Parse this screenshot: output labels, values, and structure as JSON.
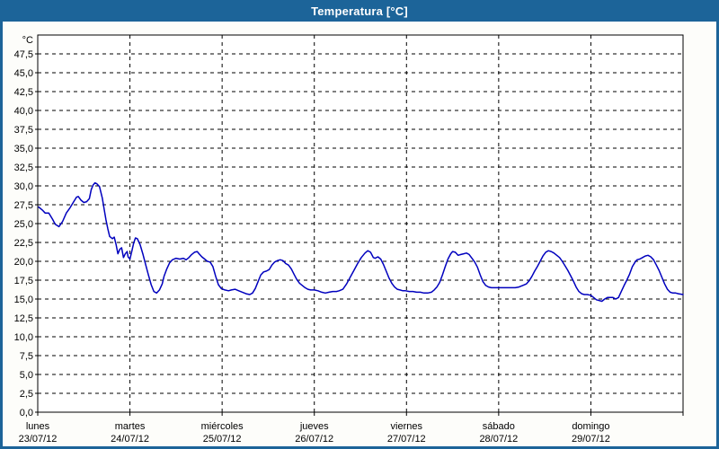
{
  "window": {
    "title": "Temperatura [°C]"
  },
  "colors": {
    "titlebar_bg": "#1C6499",
    "titlebar_text": "#FFFFFF",
    "window_border": "#1C6499",
    "panel_bg": "#FDFDFA",
    "plot_bg": "#FFFFFF",
    "axis": "#000000",
    "grid": "#000000",
    "label_text": "#000000",
    "series_line": "#0000BE"
  },
  "chart_data": {
    "type": "line",
    "title": "Temperatura [°C]",
    "legend": "none",
    "grid": {
      "horizontal": true,
      "vertical": true,
      "style": "dashed"
    },
    "y_axis": {
      "unit_label": "°C",
      "min": 0,
      "max": 50,
      "tick_step": 2.5,
      "decimal_separator": ",",
      "tick_labels": [
        "0,0",
        "2,5",
        "5,0",
        "7,5",
        "10,0",
        "12,5",
        "15,0",
        "17,5",
        "20,0",
        "22,5",
        "25,0",
        "27,5",
        "30,0",
        "32,5",
        "35,0",
        "37,5",
        "40,0",
        "42,5",
        "45,0",
        "47,5"
      ]
    },
    "x_axis": {
      "span_days": 7,
      "days": [
        {
          "name": "lunes",
          "date": "23/07/12"
        },
        {
          "name": "martes",
          "date": "24/07/12"
        },
        {
          "name": "miércoles",
          "date": "25/07/12"
        },
        {
          "name": "jueves",
          "date": "26/07/12"
        },
        {
          "name": "viernes",
          "date": "27/07/12"
        },
        {
          "name": "sábado",
          "date": "28/07/12"
        },
        {
          "name": "domingo",
          "date": "29/07/12"
        }
      ]
    },
    "series": [
      {
        "name": "Temperatura",
        "unit": "°C",
        "color": "#0000BE",
        "points_days_temp": [
          [
            0.01,
            27.2
          ],
          [
            0.05,
            26.8
          ],
          [
            0.08,
            26.4
          ],
          [
            0.12,
            26.4
          ],
          [
            0.16,
            25.6
          ],
          [
            0.19,
            24.9
          ],
          [
            0.23,
            24.6
          ],
          [
            0.27,
            25.3
          ],
          [
            0.31,
            26.4
          ],
          [
            0.35,
            27.1
          ],
          [
            0.39,
            27.9
          ],
          [
            0.42,
            28.5
          ],
          [
            0.44,
            28.6
          ],
          [
            0.47,
            28.1
          ],
          [
            0.5,
            27.8
          ],
          [
            0.53,
            27.9
          ],
          [
            0.56,
            28.3
          ],
          [
            0.58,
            29.5
          ],
          [
            0.6,
            30.1
          ],
          [
            0.62,
            30.4
          ],
          [
            0.64,
            30.3
          ],
          [
            0.67,
            29.9
          ],
          [
            0.7,
            28.4
          ],
          [
            0.72,
            26.9
          ],
          [
            0.74,
            25.5
          ],
          [
            0.76,
            24.3
          ],
          [
            0.78,
            23.3
          ],
          [
            0.81,
            23.0
          ],
          [
            0.83,
            23.2
          ],
          [
            0.85,
            22.2
          ],
          [
            0.87,
            21.0
          ],
          [
            0.89,
            21.6
          ],
          [
            0.91,
            21.8
          ],
          [
            0.93,
            20.5
          ],
          [
            0.95,
            21.0
          ],
          [
            0.97,
            21.3
          ],
          [
            0.98,
            20.6
          ],
          [
            1.0,
            20.3
          ],
          [
            1.02,
            21.3
          ],
          [
            1.04,
            22.4
          ],
          [
            1.06,
            23.1
          ],
          [
            1.08,
            23.0
          ],
          [
            1.11,
            22.2
          ],
          [
            1.14,
            21.0
          ],
          [
            1.17,
            19.6
          ],
          [
            1.2,
            18.2
          ],
          [
            1.23,
            16.9
          ],
          [
            1.26,
            16.0
          ],
          [
            1.29,
            15.8
          ],
          [
            1.32,
            16.2
          ],
          [
            1.35,
            17.0
          ],
          [
            1.37,
            18.0
          ],
          [
            1.4,
            19.0
          ],
          [
            1.43,
            19.8
          ],
          [
            1.46,
            20.2
          ],
          [
            1.5,
            20.4
          ],
          [
            1.54,
            20.3
          ],
          [
            1.58,
            20.4
          ],
          [
            1.61,
            20.2
          ],
          [
            1.64,
            20.5
          ],
          [
            1.67,
            20.9
          ],
          [
            1.7,
            21.2
          ],
          [
            1.73,
            21.3
          ],
          [
            1.75,
            21.0
          ],
          [
            1.78,
            20.6
          ],
          [
            1.81,
            20.3
          ],
          [
            1.84,
            20.0
          ],
          [
            1.87,
            19.9
          ],
          [
            1.9,
            19.3
          ],
          [
            1.93,
            18.0
          ],
          [
            1.96,
            16.9
          ],
          [
            1.99,
            16.4
          ],
          [
            2.03,
            16.2
          ],
          [
            2.07,
            16.1
          ],
          [
            2.1,
            16.2
          ],
          [
            2.14,
            16.3
          ],
          [
            2.18,
            16.1
          ],
          [
            2.22,
            15.9
          ],
          [
            2.26,
            15.7
          ],
          [
            2.3,
            15.6
          ],
          [
            2.33,
            15.8
          ],
          [
            2.36,
            16.4
          ],
          [
            2.39,
            17.3
          ],
          [
            2.42,
            18.2
          ],
          [
            2.45,
            18.6
          ],
          [
            2.48,
            18.7
          ],
          [
            2.51,
            18.9
          ],
          [
            2.54,
            19.5
          ],
          [
            2.57,
            19.9
          ],
          [
            2.6,
            20.1
          ],
          [
            2.63,
            20.2
          ],
          [
            2.66,
            20.1
          ],
          [
            2.69,
            19.7
          ],
          [
            2.72,
            19.5
          ],
          [
            2.75,
            19.0
          ],
          [
            2.78,
            18.3
          ],
          [
            2.81,
            17.6
          ],
          [
            2.84,
            17.1
          ],
          [
            2.87,
            16.8
          ],
          [
            2.9,
            16.5
          ],
          [
            2.93,
            16.3
          ],
          [
            2.96,
            16.2
          ],
          [
            3.0,
            16.2
          ],
          [
            3.04,
            16.1
          ],
          [
            3.08,
            15.9
          ],
          [
            3.12,
            15.8
          ],
          [
            3.16,
            15.9
          ],
          [
            3.2,
            16.0
          ],
          [
            3.24,
            16.0
          ],
          [
            3.27,
            16.1
          ],
          [
            3.31,
            16.3
          ],
          [
            3.35,
            17.0
          ],
          [
            3.39,
            17.9
          ],
          [
            3.43,
            18.8
          ],
          [
            3.47,
            19.7
          ],
          [
            3.51,
            20.5
          ],
          [
            3.55,
            21.1
          ],
          [
            3.58,
            21.4
          ],
          [
            3.61,
            21.2
          ],
          [
            3.64,
            20.5
          ],
          [
            3.66,
            20.4
          ],
          [
            3.69,
            20.6
          ],
          [
            3.72,
            20.3
          ],
          [
            3.75,
            19.6
          ],
          [
            3.78,
            18.7
          ],
          [
            3.81,
            17.8
          ],
          [
            3.84,
            17.1
          ],
          [
            3.87,
            16.6
          ],
          [
            3.9,
            16.3
          ],
          [
            3.93,
            16.2
          ],
          [
            3.96,
            16.1
          ],
          [
            3.99,
            16.1
          ],
          [
            4.03,
            16.0
          ],
          [
            4.07,
            16.0
          ],
          [
            4.11,
            15.9
          ],
          [
            4.15,
            15.9
          ],
          [
            4.19,
            15.8
          ],
          [
            4.23,
            15.8
          ],
          [
            4.27,
            15.9
          ],
          [
            4.3,
            16.2
          ],
          [
            4.33,
            16.6
          ],
          [
            4.36,
            17.2
          ],
          [
            4.39,
            18.2
          ],
          [
            4.42,
            19.3
          ],
          [
            4.45,
            20.3
          ],
          [
            4.48,
            21.0
          ],
          [
            4.5,
            21.3
          ],
          [
            4.53,
            21.2
          ],
          [
            4.56,
            20.8
          ],
          [
            4.59,
            20.9
          ],
          [
            4.62,
            21.0
          ],
          [
            4.65,
            21.1
          ],
          [
            4.68,
            20.9
          ],
          [
            4.71,
            20.4
          ],
          [
            4.74,
            19.9
          ],
          [
            4.77,
            19.2
          ],
          [
            4.8,
            18.2
          ],
          [
            4.83,
            17.3
          ],
          [
            4.86,
            16.8
          ],
          [
            4.89,
            16.6
          ],
          [
            4.92,
            16.5
          ],
          [
            4.95,
            16.5
          ],
          [
            4.98,
            16.5
          ],
          [
            5.02,
            16.5
          ],
          [
            5.06,
            16.5
          ],
          [
            5.1,
            16.5
          ],
          [
            5.14,
            16.5
          ],
          [
            5.18,
            16.5
          ],
          [
            5.22,
            16.6
          ],
          [
            5.26,
            16.8
          ],
          [
            5.3,
            17.0
          ],
          [
            5.33,
            17.4
          ],
          [
            5.36,
            18.0
          ],
          [
            5.39,
            18.7
          ],
          [
            5.42,
            19.3
          ],
          [
            5.45,
            20.0
          ],
          [
            5.48,
            20.7
          ],
          [
            5.51,
            21.2
          ],
          [
            5.54,
            21.4
          ],
          [
            5.57,
            21.3
          ],
          [
            5.6,
            21.1
          ],
          [
            5.63,
            20.8
          ],
          [
            5.66,
            20.5
          ],
          [
            5.69,
            20.0
          ],
          [
            5.72,
            19.4
          ],
          [
            5.75,
            18.8
          ],
          [
            5.78,
            18.1
          ],
          [
            5.81,
            17.4
          ],
          [
            5.84,
            16.6
          ],
          [
            5.87,
            16.0
          ],
          [
            5.9,
            15.7
          ],
          [
            5.93,
            15.6
          ],
          [
            5.96,
            15.6
          ],
          [
            6.0,
            15.5
          ],
          [
            6.03,
            15.2
          ],
          [
            6.06,
            14.9
          ],
          [
            6.09,
            14.8
          ],
          [
            6.12,
            14.7
          ],
          [
            6.15,
            15.0
          ],
          [
            6.18,
            15.2
          ],
          [
            6.21,
            15.2
          ],
          [
            6.24,
            15.2
          ],
          [
            6.27,
            15.0
          ],
          [
            6.3,
            15.2
          ],
          [
            6.33,
            16.0
          ],
          [
            6.36,
            16.8
          ],
          [
            6.39,
            17.5
          ],
          [
            6.42,
            18.3
          ],
          [
            6.45,
            19.3
          ],
          [
            6.48,
            19.9
          ],
          [
            6.5,
            20.2
          ],
          [
            6.53,
            20.3
          ],
          [
            6.56,
            20.5
          ],
          [
            6.59,
            20.7
          ],
          [
            6.62,
            20.8
          ],
          [
            6.65,
            20.6
          ],
          [
            6.68,
            20.2
          ],
          [
            6.71,
            19.5
          ],
          [
            6.74,
            18.8
          ],
          [
            6.77,
            17.9
          ],
          [
            6.8,
            17.0
          ],
          [
            6.83,
            16.3
          ],
          [
            6.86,
            15.9
          ],
          [
            6.89,
            15.8
          ],
          [
            6.92,
            15.8
          ],
          [
            6.95,
            15.7
          ],
          [
            7.0,
            15.6
          ]
        ]
      }
    ]
  }
}
